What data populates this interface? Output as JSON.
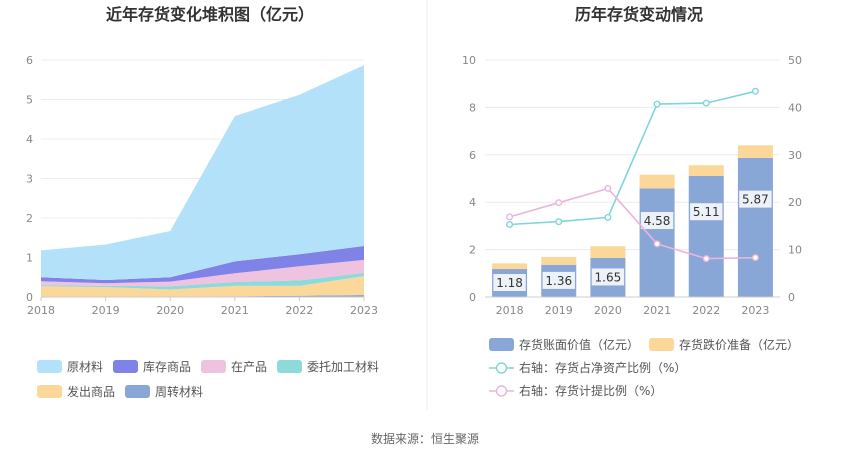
{
  "footer_source": "数据来源：恒生聚源",
  "colors": {
    "raw_materials": "#b3e1f9",
    "stock_goods": "#7f82e6",
    "wip": "#efc2df",
    "consigned": "#8edadb",
    "shipped": "#fbd899",
    "turnover": "#88a6d6",
    "bar_book": "#88a6d6",
    "bar_reserve": "#fbd899",
    "line_ratio": "#7fd6d9",
    "line_provision": "#e9b5dd"
  },
  "chart_data": [
    {
      "type": "area",
      "stacked": true,
      "title": "近年存货变化堆积图（亿元）",
      "categories": [
        "2018",
        "2019",
        "2020",
        "2021",
        "2022",
        "2023"
      ],
      "ylim": [
        0,
        6
      ],
      "yticks": [
        "0",
        "1",
        "2",
        "3",
        "4",
        "5",
        "6"
      ],
      "series": [
        {
          "name": "周转材料",
          "color_key": "turnover",
          "values": [
            0.01,
            0.01,
            0.01,
            0.02,
            0.03,
            0.05
          ]
        },
        {
          "name": "发出商品",
          "color_key": "shipped",
          "values": [
            0.26,
            0.24,
            0.18,
            0.26,
            0.25,
            0.48
          ]
        },
        {
          "name": "委托加工材料",
          "color_key": "consigned",
          "values": [
            0.03,
            0.03,
            0.08,
            0.1,
            0.14,
            0.08
          ]
        },
        {
          "name": "在产品",
          "color_key": "wip",
          "values": [
            0.1,
            0.07,
            0.12,
            0.22,
            0.36,
            0.33
          ]
        },
        {
          "name": "库存商品",
          "color_key": "stock_goods",
          "values": [
            0.1,
            0.08,
            0.11,
            0.3,
            0.3,
            0.35
          ]
        },
        {
          "name": "原材料",
          "color_key": "raw_materials",
          "values": [
            0.68,
            0.9,
            1.17,
            3.68,
            4.04,
            4.58
          ]
        }
      ],
      "legend": [
        {
          "label": "原材料",
          "color_key": "raw_materials"
        },
        {
          "label": "库存商品",
          "color_key": "stock_goods"
        },
        {
          "label": "在产品",
          "color_key": "wip"
        },
        {
          "label": "委托加工材料",
          "color_key": "consigned"
        },
        {
          "label": "发出商品",
          "color_key": "shipped"
        },
        {
          "label": "周转材料",
          "color_key": "turnover"
        }
      ]
    },
    {
      "type": "bar",
      "stacked": true,
      "title": "历年存货变动情况",
      "categories": [
        "2018",
        "2019",
        "2020",
        "2021",
        "2022",
        "2023"
      ],
      "ylim": [
        0,
        10
      ],
      "yticks": [
        "0",
        "2",
        "4",
        "6",
        "8",
        "10"
      ],
      "y2lim": [
        0,
        50
      ],
      "y2ticks": [
        "0",
        "10",
        "20",
        "30",
        "40",
        "50"
      ],
      "series": [
        {
          "name": "存货账面价值（亿元）",
          "color_key": "bar_book",
          "values": [
            1.18,
            1.36,
            1.65,
            4.58,
            5.11,
            5.87
          ],
          "labels": [
            "1.18",
            "1.36",
            "1.65",
            "4.58",
            "5.11",
            "5.87"
          ]
        },
        {
          "name": "存货跌价准备（亿元）",
          "color_key": "bar_reserve",
          "values": [
            0.24,
            0.33,
            0.49,
            0.58,
            0.45,
            0.53
          ]
        }
      ],
      "lines": [
        {
          "name": "右轴：存货占净资产比例（%）",
          "color_key": "line_ratio",
          "axis": "right",
          "values": [
            15.3,
            15.9,
            16.8,
            40.7,
            40.9,
            43.4
          ]
        },
        {
          "name": "右轴：存货计提比例（%）",
          "color_key": "line_provision",
          "axis": "right",
          "values": [
            16.9,
            19.9,
            22.9,
            11.2,
            8.1,
            8.3
          ]
        }
      ]
    }
  ]
}
